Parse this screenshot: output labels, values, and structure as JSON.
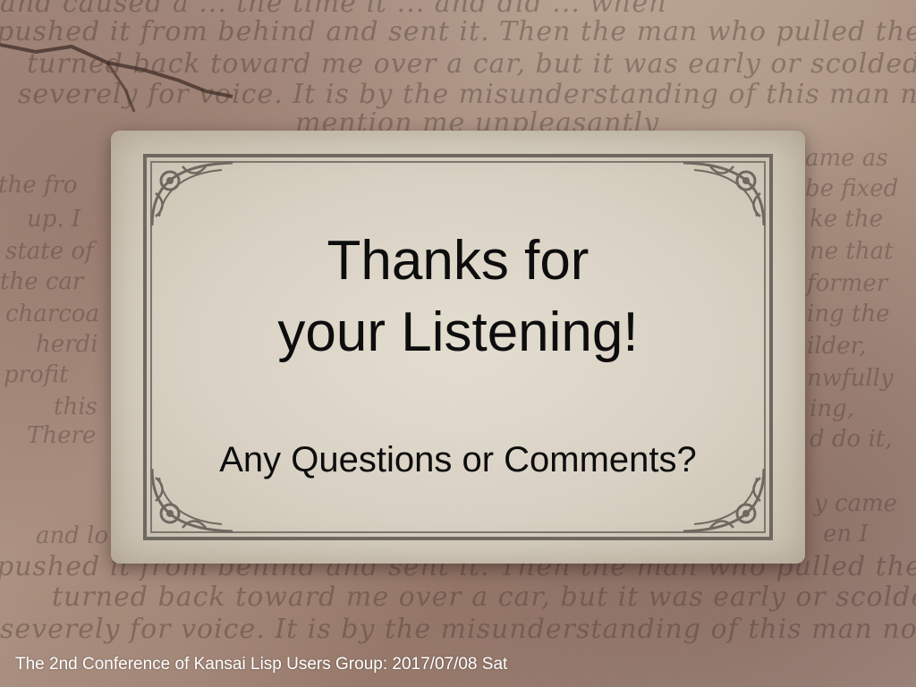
{
  "slide": {
    "title_line1": "Thanks for",
    "title_line2": "your Listening!",
    "subtitle": "Any Questions or Comments?",
    "footer": "The 2nd Conference of Kansai Lisp Users Group: 2017/07/08 Sat"
  },
  "background_text": {
    "line1": "and caused a ... the time it ... and did ... when",
    "line2": "pushed it from behind and sent it. Then the man who pulled the car",
    "line3": "turned back toward me over a car, but it was early or scolded it",
    "line4": "severely for voice. It is by the misunderstanding of this man not to",
    "line5": "mention me unpleasantly",
    "line6": "pushed it from behind and sent it. Then the man who pulled the car",
    "line7": "turned back toward me over a car, but it was early or scolded it",
    "line8": "severely for voice. It is by the misunderstanding of this man not to"
  },
  "side_words_left": [
    "the fro",
    "up. I",
    "state of",
    "the car",
    "charcoa",
    "herdi",
    "profit",
    "this",
    "There",
    "and lo"
  ],
  "side_words_right": [
    "ame as",
    "be fixed",
    "ke the",
    "ne that",
    "former",
    "ing the",
    "ilder,",
    "nwfully",
    "ing,",
    "d do it,",
    "y came",
    "en I"
  ],
  "colors": {
    "card": "#e3ddd0",
    "frame": "#6e6860",
    "title_text": "#0d0d0d",
    "footer_text": "#ffffff"
  }
}
